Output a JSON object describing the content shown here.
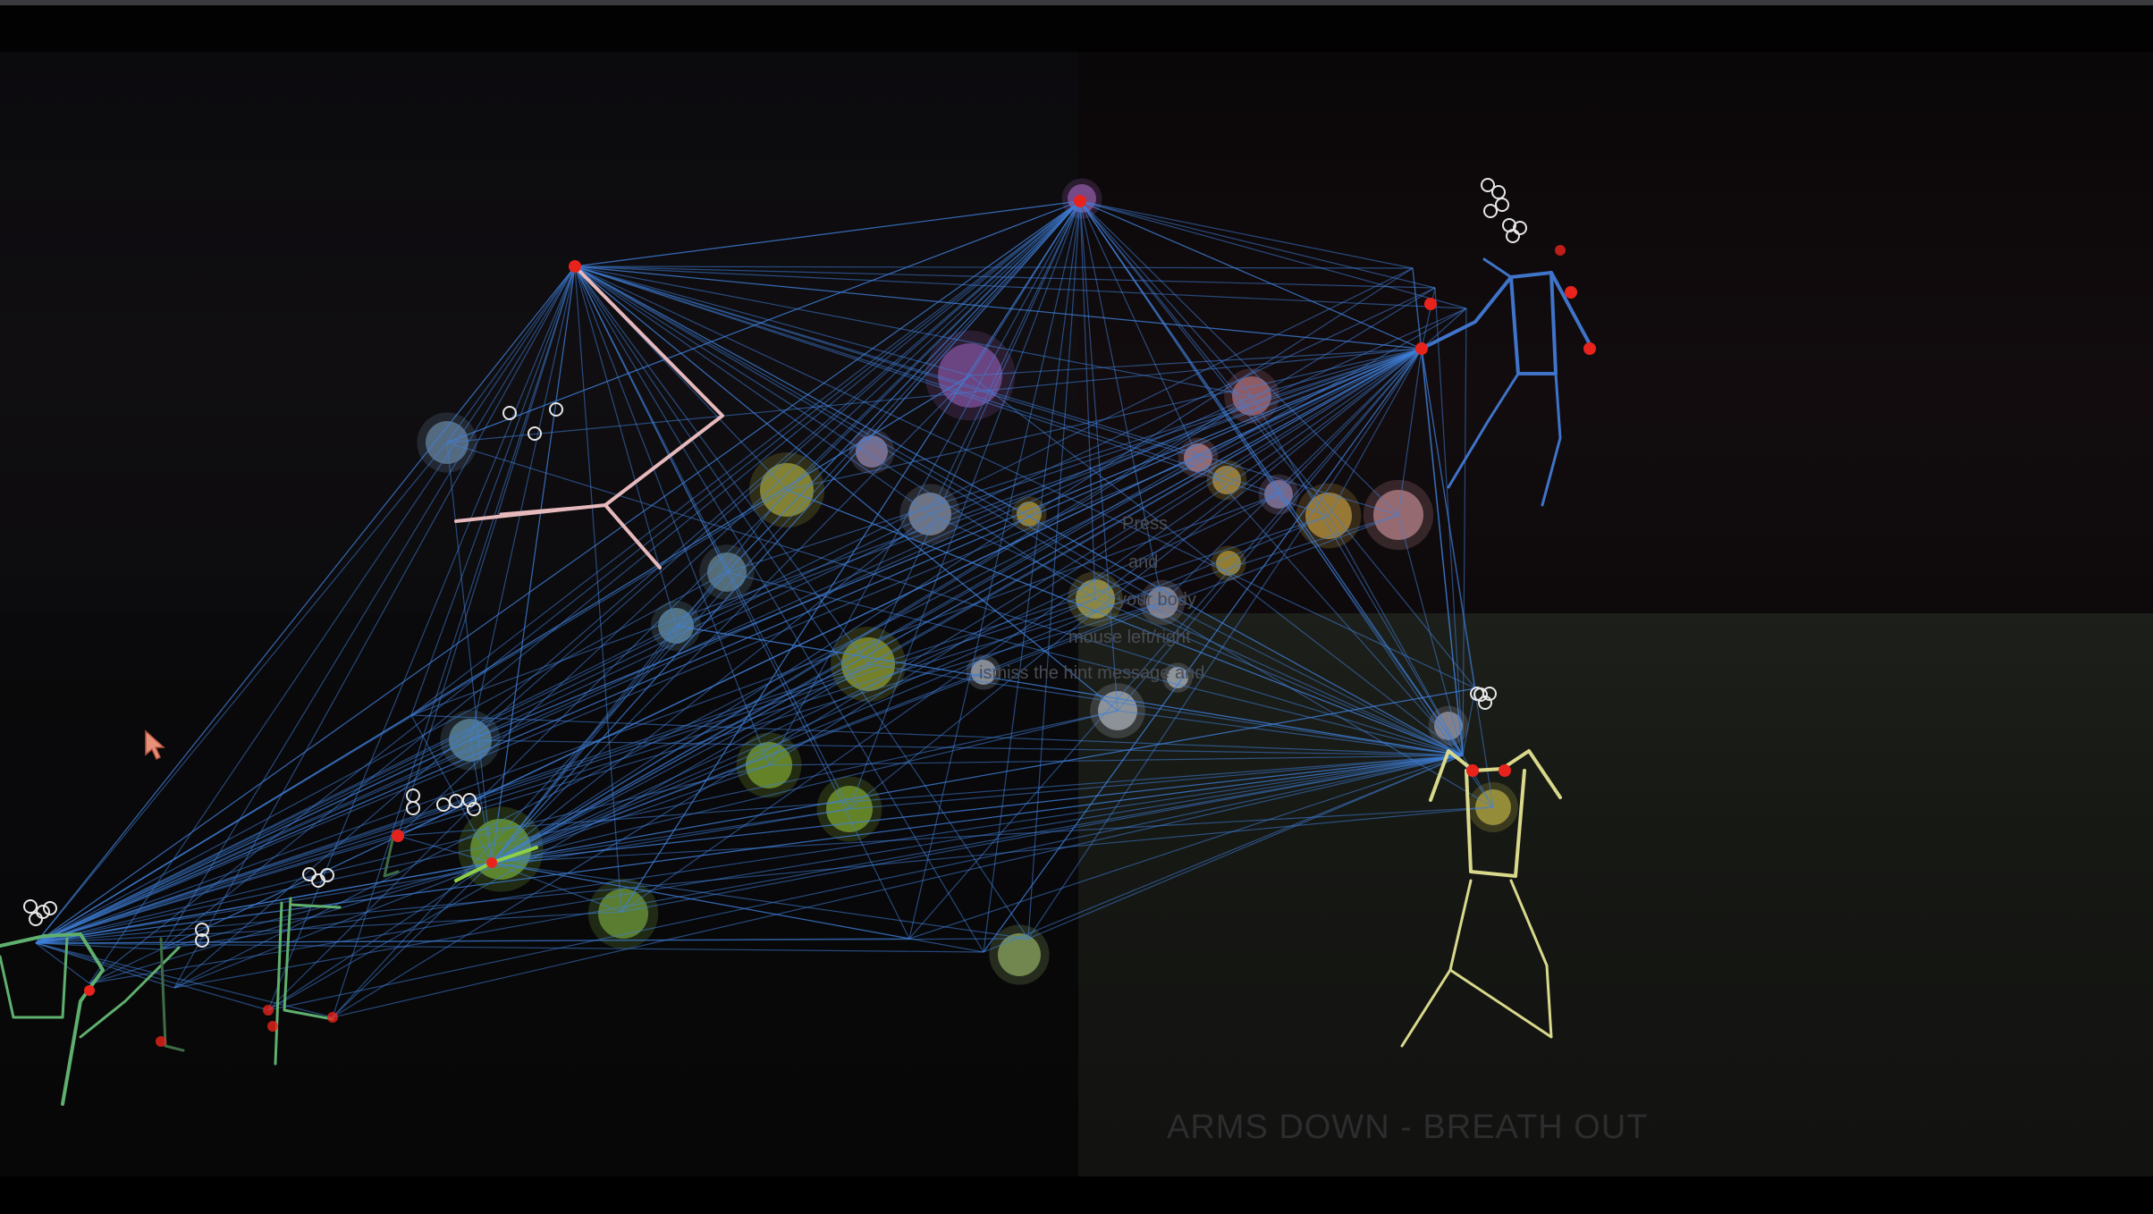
{
  "colors": {
    "network_line": "#3f7fd8",
    "keypoint": "#e8231c",
    "skeleton_top_left": "#e6b9bd",
    "skeleton_top_right": "#3f74c9",
    "skeleton_bottom_right": "#d9d98c",
    "skeleton_bottom_left": "#5fb06e"
  },
  "overlay_hints": [
    "Press",
    "and",
    "your body",
    "mouse left/right",
    "ismiss the hint message and"
  ],
  "caption": "ARMS DOWN - BREATH OUT",
  "icons": [
    "cursor-icon",
    "face-ring-icon"
  ]
}
